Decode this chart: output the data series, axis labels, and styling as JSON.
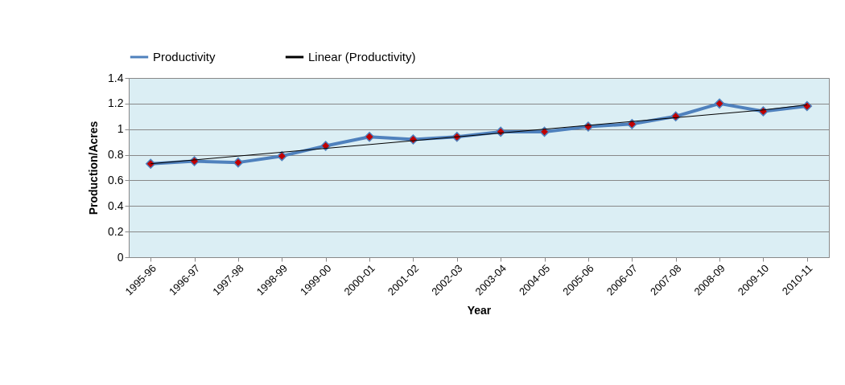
{
  "chart_data": {
    "type": "line",
    "xlabel": "Year",
    "ylabel": "Production/Acres",
    "categories": [
      "1995-96",
      "1996-97",
      "1997-98",
      "1998-99",
      "1999-00",
      "2000-01",
      "2001-02",
      "2002-03",
      "2003-04",
      "2004-05",
      "2005-06",
      "2006-07",
      "2007-08",
      "2008-09",
      "2009-10",
      "2010-11"
    ],
    "series": [
      {
        "name": "Productivity",
        "color": "#4f81bd",
        "marker": "diamond",
        "values": [
          0.73,
          0.75,
          0.74,
          0.79,
          0.87,
          0.94,
          0.92,
          0.94,
          0.98,
          0.98,
          1.02,
          1.04,
          1.1,
          1.2,
          1.14,
          1.18
        ]
      },
      {
        "name": "Linear (Productivity)",
        "color": "#000000",
        "type": "line",
        "marker": "none",
        "values": [
          0.73,
          0.76,
          0.79,
          0.82,
          0.85,
          0.88,
          0.91,
          0.94,
          0.97,
          1.0,
          1.03,
          1.06,
          1.09,
          1.12,
          1.15,
          1.19
        ]
      }
    ],
    "ylim": [
      0,
      1.4
    ],
    "yticks": [
      0,
      0.2,
      0.4,
      0.6,
      0.8,
      1,
      1.2,
      1.4
    ],
    "grid": "y",
    "legend": "top"
  }
}
